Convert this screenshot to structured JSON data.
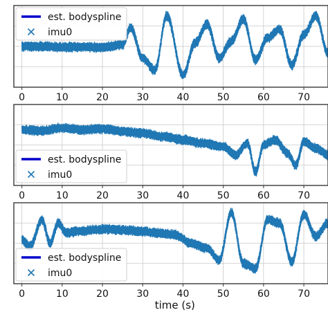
{
  "colors": {
    "imu_series": "#1f77b4",
    "spline_series": "#0000cc",
    "grid": "#c8c8c8"
  },
  "chart_data": [
    {
      "type": "line",
      "panel": "top",
      "xlabel": "",
      "xlim": [
        -2,
        76
      ],
      "ylim": [
        -1.2,
        1.2
      ],
      "x_ticks": [
        0,
        10,
        20,
        30,
        40,
        50,
        60,
        70
      ],
      "x_tick_labels": [
        "0",
        "10",
        "20",
        "30",
        "40",
        "50",
        "60",
        "70"
      ],
      "grid": true,
      "legend": {
        "placement": "upper-left",
        "entries": [
          {
            "label": "est. bodyspline",
            "style": "line"
          },
          {
            "label": "imu0",
            "style": "x-marker"
          }
        ]
      },
      "series": [
        {
          "name": "est. bodyspline",
          "x": [],
          "y": []
        },
        {
          "name": "imu0",
          "x": [
            0,
            5,
            10,
            15,
            20,
            25,
            27,
            30,
            33,
            36,
            40,
            43,
            46,
            49,
            52,
            55,
            58,
            61,
            64,
            67,
            70,
            73,
            76
          ],
          "y": [
            0.0,
            0.0,
            -0.02,
            -0.02,
            -0.03,
            0.05,
            0.55,
            -0.35,
            -0.7,
            0.9,
            -0.85,
            0.1,
            0.65,
            -0.35,
            0.15,
            0.8,
            -0.4,
            0.25,
            0.5,
            -0.55,
            0.35,
            0.9,
            -0.2
          ]
        }
      ]
    },
    {
      "type": "line",
      "panel": "middle",
      "xlabel": "",
      "xlim": [
        -2,
        76
      ],
      "ylim": [
        -1.2,
        1.2
      ],
      "x_ticks": [
        0,
        10,
        20,
        30,
        40,
        50,
        60,
        70
      ],
      "x_tick_labels": [
        "0",
        "10",
        "20",
        "30",
        "40",
        "50",
        "60",
        "70"
      ],
      "grid": true,
      "legend": {
        "placement": "lower-left",
        "entries": [
          {
            "label": "est. bodyspline",
            "style": "line"
          },
          {
            "label": "imu0",
            "style": "x-marker"
          }
        ]
      },
      "series": [
        {
          "name": "est. bodyspline",
          "x": [],
          "y": []
        },
        {
          "name": "imu0",
          "x": [
            0,
            5,
            10,
            15,
            20,
            25,
            30,
            35,
            40,
            45,
            50,
            53,
            56,
            58,
            60,
            63,
            66,
            68,
            70,
            73,
            76
          ],
          "y": [
            0.45,
            0.42,
            0.5,
            0.45,
            0.48,
            0.4,
            0.35,
            0.25,
            0.15,
            0.05,
            -0.05,
            -0.3,
            0.05,
            -0.8,
            0.0,
            0.15,
            -0.25,
            -0.6,
            0.1,
            -0.1,
            -0.3
          ]
        }
      ]
    },
    {
      "type": "line",
      "panel": "bottom",
      "xlabel": "time (s)",
      "xlim": [
        -2,
        76
      ],
      "ylim": [
        -1.2,
        1.2
      ],
      "x_ticks": [
        0,
        10,
        20,
        30,
        40,
        50,
        60,
        70
      ],
      "x_tick_labels": [
        "0",
        "10",
        "20",
        "30",
        "40",
        "50",
        "60",
        "70"
      ],
      "grid": true,
      "legend": {
        "placement": "lower-left",
        "entries": [
          {
            "label": "est. bodyspline",
            "style": "line"
          },
          {
            "label": "imu0",
            "style": "x-marker"
          }
        ]
      },
      "series": [
        {
          "name": "est. bodyspline",
          "x": [],
          "y": []
        },
        {
          "name": "imu0",
          "x": [
            0,
            2,
            5,
            7,
            9,
            11,
            14,
            18,
            22,
            26,
            30,
            34,
            38,
            42,
            46,
            49,
            52,
            55,
            58,
            61,
            64,
            67,
            70,
            73,
            76
          ],
          "y": [
            0.1,
            -0.1,
            0.7,
            0.0,
            0.6,
            0.3,
            0.35,
            0.4,
            0.42,
            0.38,
            0.35,
            0.3,
            0.25,
            0.0,
            -0.15,
            -0.5,
            0.9,
            -0.6,
            -0.75,
            0.7,
            0.6,
            -0.55,
            0.85,
            0.2,
            0.6
          ]
        }
      ]
    }
  ]
}
